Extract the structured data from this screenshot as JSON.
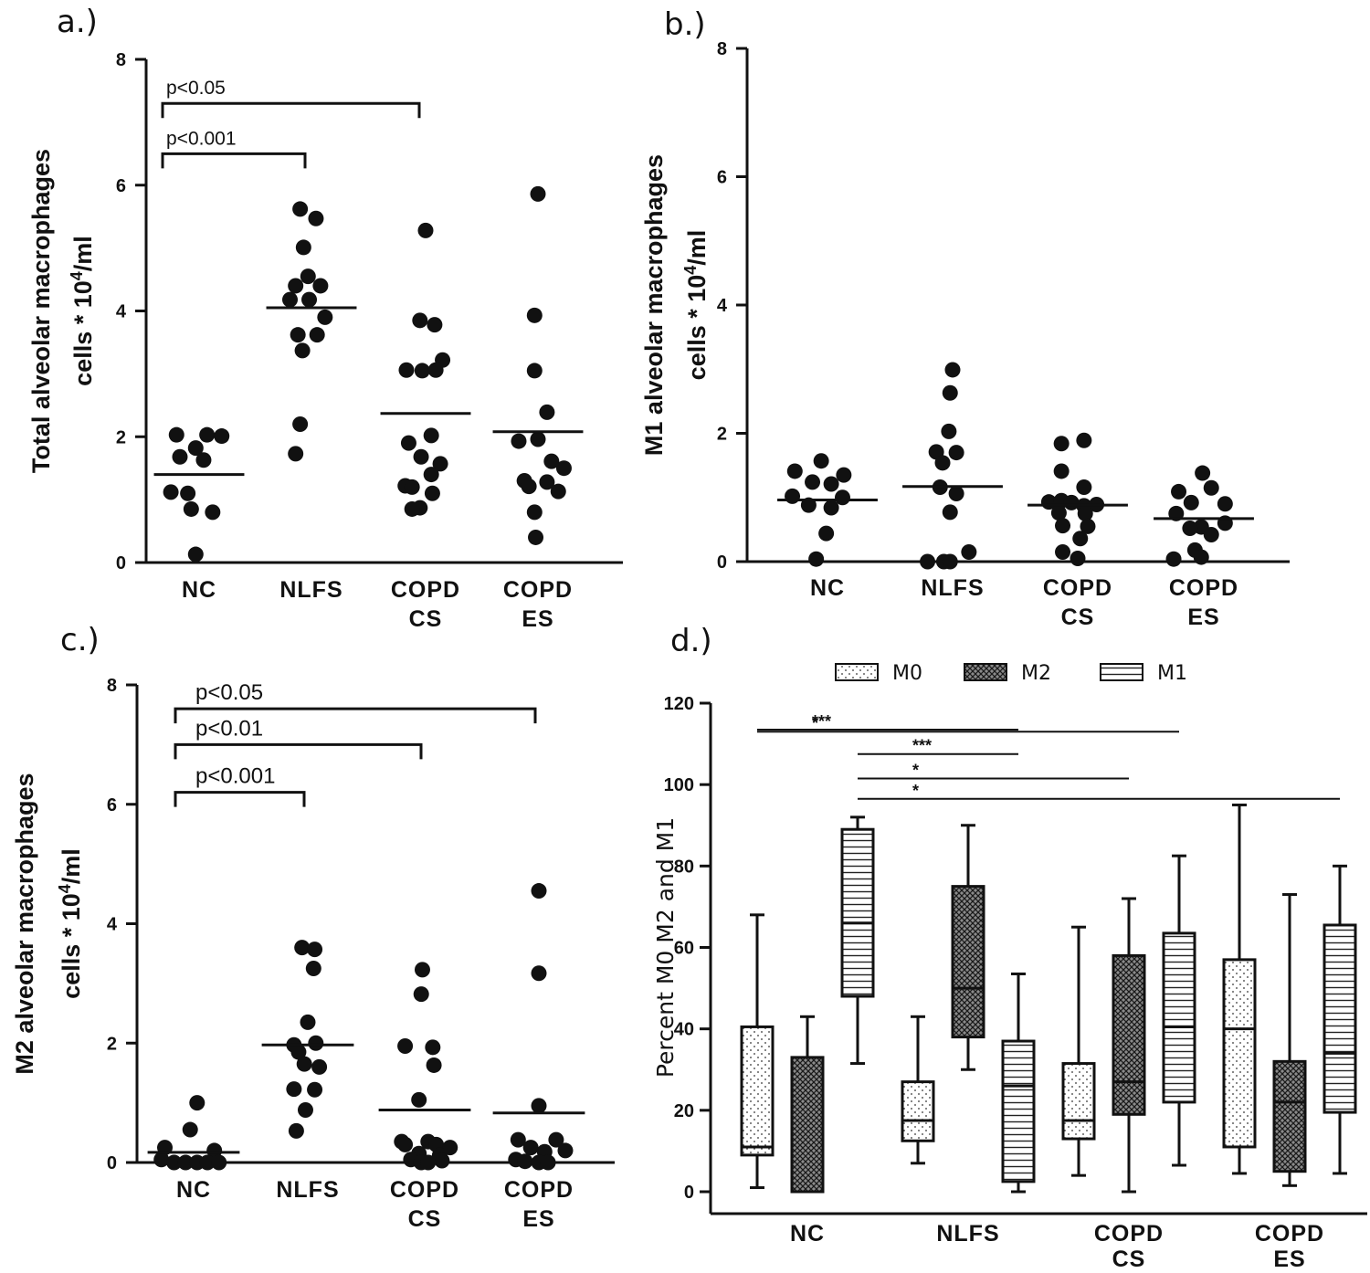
{
  "chart_data": [
    {
      "panel": "a.)",
      "type": "scatter",
      "ylabel_line1": "Total alveolar macrophages",
      "ylabel_line2": "cells * 10",
      "ylabel_sup": "4",
      "ylabel_unit": "/ml",
      "ylim": [
        0,
        8
      ],
      "yticks": [
        "0",
        "2",
        "4",
        "6",
        "8"
      ],
      "categories": [
        [
          "NC"
        ],
        [
          "NLFS"
        ],
        [
          "COPD",
          "CS"
        ],
        [
          "COPD",
          "ES"
        ]
      ],
      "points": [
        [
          [
            -0.2,
            2.03
          ],
          [
            0.07,
            2.03
          ],
          [
            0.2,
            2.01
          ],
          [
            -0.03,
            1.82
          ],
          [
            -0.17,
            1.68
          ],
          [
            0.04,
            1.63
          ],
          [
            -0.25,
            1.12
          ],
          [
            -0.1,
            1.1
          ],
          [
            -0.07,
            0.85
          ],
          [
            0.12,
            0.8
          ],
          [
            -0.03,
            0.13
          ]
        ],
        [
          [
            -0.1,
            5.62
          ],
          [
            0.04,
            5.47
          ],
          [
            -0.07,
            5.01
          ],
          [
            -0.14,
            4.4
          ],
          [
            -0.03,
            4.55
          ],
          [
            0.08,
            4.4
          ],
          [
            -0.19,
            4.18
          ],
          [
            -0.02,
            4.18
          ],
          [
            0.12,
            3.9
          ],
          [
            -0.12,
            3.62
          ],
          [
            0.05,
            3.62
          ],
          [
            -0.08,
            3.37
          ],
          [
            -0.1,
            2.2
          ],
          [
            -0.14,
            1.73
          ]
        ],
        [
          [
            0,
            5.28
          ],
          [
            -0.05,
            3.85
          ],
          [
            0.08,
            3.78
          ],
          [
            0.15,
            3.22
          ],
          [
            -0.17,
            3.06
          ],
          [
            -0.03,
            3.05
          ],
          [
            0.09,
            3.06
          ],
          [
            0.05,
            2.02
          ],
          [
            -0.15,
            1.9
          ],
          [
            -0.04,
            1.68
          ],
          [
            0.13,
            1.57
          ],
          [
            0.05,
            1.4
          ],
          [
            -0.18,
            1.22
          ],
          [
            -0.12,
            1.2
          ],
          [
            0.06,
            1.1
          ],
          [
            -0.05,
            0.87
          ],
          [
            -0.12,
            0.85
          ]
        ],
        [
          [
            0,
            5.86
          ],
          [
            -0.03,
            3.93
          ],
          [
            -0.03,
            3.05
          ],
          [
            0.08,
            2.39
          ],
          [
            -0.17,
            1.93
          ],
          [
            0,
            1.96
          ],
          [
            0.12,
            1.61
          ],
          [
            0.23,
            1.5
          ],
          [
            -0.12,
            1.3
          ],
          [
            0.08,
            1.28
          ],
          [
            -0.08,
            1.21
          ],
          [
            0.18,
            1.13
          ],
          [
            -0.03,
            0.8
          ],
          [
            -0.02,
            0.4
          ]
        ]
      ],
      "medians": [
        1.4,
        4.05,
        2.37,
        2.08
      ],
      "brackets": [
        {
          "from": 0,
          "to": 2,
          "y": 7.3,
          "label": "p<0.05"
        },
        {
          "from": 0,
          "to": 1,
          "y": 6.5,
          "label": "p<0.001"
        }
      ]
    },
    {
      "panel": "b.)",
      "type": "scatter",
      "ylabel_line1": "M1 alveolar macrophages",
      "ylabel_line2": "cells * 10",
      "ylabel_sup": "4",
      "ylabel_unit": "/ml",
      "ylim": [
        0,
        8
      ],
      "yticks": [
        "0",
        "2",
        "4",
        "6",
        "8"
      ],
      "categories": [
        [
          "NC"
        ],
        [
          "NLFS"
        ],
        [
          "COPD",
          "CS"
        ],
        [
          "COPD",
          "ES"
        ]
      ],
      "points": [
        [
          [
            -0.05,
            1.57
          ],
          [
            -0.26,
            1.41
          ],
          [
            0.13,
            1.35
          ],
          [
            -0.12,
            1.24
          ],
          [
            0.03,
            1.21
          ],
          [
            -0.28,
            1.02
          ],
          [
            0.12,
            1.0
          ],
          [
            -0.15,
            0.88
          ],
          [
            0.03,
            0.84
          ],
          [
            -0.01,
            0.44
          ],
          [
            -0.09,
            0.04
          ]
        ],
        [
          [
            0,
            2.99
          ],
          [
            -0.02,
            2.63
          ],
          [
            -0.03,
            2.03
          ],
          [
            -0.13,
            1.71
          ],
          [
            0.03,
            1.7
          ],
          [
            -0.08,
            1.54
          ],
          [
            -0.1,
            1.16
          ],
          [
            0.03,
            1.06
          ],
          [
            -0.02,
            0.77
          ],
          [
            0.13,
            0.15
          ],
          [
            -0.2,
            0.0
          ],
          [
            -0.07,
            0.0
          ],
          [
            -0.02,
            0.0
          ]
        ],
        [
          [
            0.05,
            1.89
          ],
          [
            -0.13,
            1.84
          ],
          [
            -0.13,
            1.41
          ],
          [
            0.05,
            1.16
          ],
          [
            -0.23,
            0.93
          ],
          [
            -0.13,
            0.95
          ],
          [
            -0.05,
            0.92
          ],
          [
            0.05,
            0.87
          ],
          [
            0.15,
            0.89
          ],
          [
            -0.15,
            0.76
          ],
          [
            0.06,
            0.75
          ],
          [
            -0.12,
            0.56
          ],
          [
            0.08,
            0.55
          ],
          [
            0.02,
            0.36
          ],
          [
            -0.12,
            0.15
          ],
          [
            0.0,
            0.05
          ]
        ],
        [
          [
            -0.01,
            1.38
          ],
          [
            -0.2,
            1.09
          ],
          [
            0.06,
            1.15
          ],
          [
            -0.1,
            0.92
          ],
          [
            0.17,
            0.9
          ],
          [
            -0.22,
            0.75
          ],
          [
            0.17,
            0.6
          ],
          [
            -0.02,
            0.54
          ],
          [
            -0.11,
            0.52
          ],
          [
            0.06,
            0.42
          ],
          [
            -0.07,
            0.18
          ],
          [
            -0.02,
            0.07
          ],
          [
            -0.24,
            0.04
          ]
        ]
      ],
      "medians": [
        0.96,
        1.17,
        0.88,
        0.67
      ],
      "brackets": []
    },
    {
      "panel": "c.)",
      "type": "scatter",
      "ylabel_line1": "M2 alveolar macrophages",
      "ylabel_line2": "cells * 10",
      "ylabel_sup": "4",
      "ylabel_unit": "/ml",
      "ylim": [
        0,
        8
      ],
      "yticks": [
        "0",
        "2",
        "4",
        "6",
        "8"
      ],
      "categories": [
        [
          "NC"
        ],
        [
          "NLFS"
        ],
        [
          "COPD",
          "CS"
        ],
        [
          "COPD",
          "ES"
        ]
      ],
      "points": [
        [
          [
            0.03,
            1.0
          ],
          [
            -0.03,
            0.55
          ],
          [
            -0.25,
            0.25
          ],
          [
            0.18,
            0.2
          ],
          [
            -0.28,
            0.05
          ],
          [
            -0.17,
            0.0
          ],
          [
            -0.07,
            0.0
          ],
          [
            0.03,
            0.0
          ],
          [
            0.12,
            0.0
          ],
          [
            0.22,
            0.0
          ]
        ],
        [
          [
            -0.05,
            3.6
          ],
          [
            0.06,
            3.57
          ],
          [
            0.05,
            3.25
          ],
          [
            0,
            2.35
          ],
          [
            -0.12,
            1.97
          ],
          [
            0.07,
            2.0
          ],
          [
            -0.08,
            1.85
          ],
          [
            -0.03,
            1.65
          ],
          [
            0.1,
            1.6
          ],
          [
            -0.12,
            1.23
          ],
          [
            0.06,
            1.22
          ],
          [
            -0.02,
            0.88
          ],
          [
            -0.1,
            0.53
          ]
        ],
        [
          [
            -0.02,
            3.23
          ],
          [
            -0.03,
            2.82
          ],
          [
            -0.17,
            1.95
          ],
          [
            0.07,
            1.93
          ],
          [
            0.08,
            1.63
          ],
          [
            -0.05,
            1.05
          ],
          [
            -0.2,
            0.35
          ],
          [
            -0.17,
            0.3
          ],
          [
            0.03,
            0.35
          ],
          [
            0.1,
            0.3
          ],
          [
            0.22,
            0.25
          ],
          [
            -0.05,
            0.15
          ],
          [
            0.13,
            0.12
          ],
          [
            -0.12,
            0.05
          ],
          [
            0.15,
            0.03
          ],
          [
            -0.03,
            0.0
          ],
          [
            0.03,
            0.0
          ]
        ],
        [
          [
            0.0,
            4.55
          ],
          [
            0.0,
            3.17
          ],
          [
            0.0,
            0.95
          ],
          [
            -0.18,
            0.38
          ],
          [
            0.15,
            0.38
          ],
          [
            -0.07,
            0.25
          ],
          [
            0.23,
            0.2
          ],
          [
            0.05,
            0.18
          ],
          [
            -0.2,
            0.05
          ],
          [
            -0.12,
            0.02
          ],
          [
            0.0,
            0.0
          ],
          [
            0.08,
            0.0
          ]
        ]
      ],
      "medians": [
        0.17,
        1.97,
        0.88,
        0.83
      ],
      "brackets": [
        {
          "from": 0,
          "to": 3,
          "y": 7.6,
          "label": "p<0.05"
        },
        {
          "from": 0,
          "to": 2,
          "y": 7.0,
          "label": "p<0.01"
        },
        {
          "from": 0,
          "to": 1,
          "y": 6.2,
          "label": "p<0.001"
        }
      ]
    },
    {
      "panel": "d.)",
      "type": "box",
      "ylabel": "Percent M0 M2 and M1",
      "ylim": [
        0,
        120
      ],
      "yticks": [
        "0",
        "20",
        "40",
        "60",
        "80",
        "100",
        "120"
      ],
      "categories": [
        [
          "NC"
        ],
        [
          "NLFS"
        ],
        [
          "COPD",
          "CS"
        ],
        [
          "COPD",
          "ES"
        ]
      ],
      "legend": [
        "M0",
        "M2",
        "M1"
      ],
      "series": [
        {
          "name": "M0",
          "boxes": [
            {
              "min": 1,
              "q1": 9,
              "median": 11,
              "q3": 40.5,
              "max": 68
            },
            {
              "min": 7,
              "q1": 12.5,
              "median": 17.5,
              "q3": 27,
              "max": 43
            },
            {
              "min": 4,
              "q1": 13,
              "median": 17.5,
              "q3": 31.5,
              "max": 65
            },
            {
              "min": 4.5,
              "q1": 11,
              "median": 40,
              "q3": 57,
              "max": 95
            }
          ]
        },
        {
          "name": "M2",
          "boxes": [
            {
              "min": 0,
              "q1": 0,
              "median": 0,
              "q3": 33,
              "max": 43
            },
            {
              "min": 30,
              "q1": 38,
              "median": 50,
              "q3": 75,
              "max": 90
            },
            {
              "min": 0,
              "q1": 19,
              "median": 27,
              "q3": 58,
              "max": 72
            },
            {
              "min": 1.5,
              "q1": 5,
              "median": 22,
              "q3": 32,
              "max": 73
            }
          ]
        },
        {
          "name": "M1",
          "boxes": [
            {
              "min": 31.5,
              "q1": 48,
              "median": 66,
              "q3": 89,
              "max": 92
            },
            {
              "min": 0,
              "q1": 2.5,
              "median": 26,
              "q3": 37,
              "max": 53.5
            },
            {
              "min": 6.5,
              "q1": 22,
              "median": 40.5,
              "q3": 63.5,
              "max": 82.5
            },
            {
              "min": 4.5,
              "q1": 19.5,
              "median": 34,
              "q3": 65.5,
              "max": 80
            }
          ]
        }
      ],
      "significance": [
        {
          "y": 113.5,
          "from": "NC-M0",
          "to": "NLFS-M1",
          "label": "***"
        },
        {
          "y": 113,
          "from": "NC-M0",
          "to": "COPD CS-M1",
          "label": "*"
        },
        {
          "y": 107.5,
          "from": "NC-M1",
          "to": "NLFS-M1",
          "label": "***"
        },
        {
          "y": 101.5,
          "from": "NC-M1",
          "to": "COPD CS-M2",
          "label": "*"
        },
        {
          "y": 96.5,
          "from": "NC-M1",
          "to": "COPD ES-M1",
          "label": "*"
        }
      ]
    }
  ]
}
